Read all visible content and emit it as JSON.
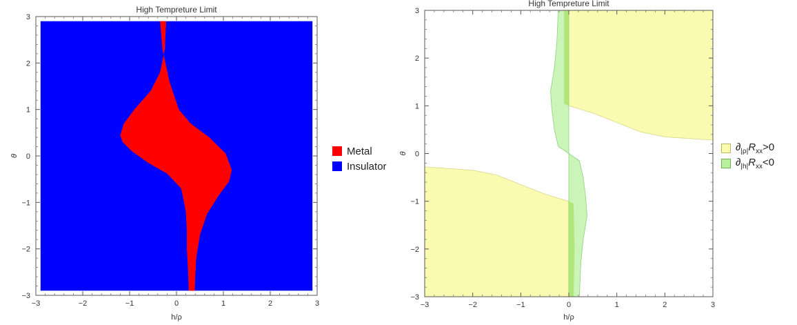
{
  "chart_data": [
    {
      "type": "region",
      "title": "High Tempreture Limit",
      "xlabel": "h/ρ",
      "ylabel": "θ",
      "xlim": [
        -3,
        3
      ],
      "ylim": [
        -3,
        3
      ],
      "xticks": [
        "−3",
        "−2",
        "−1",
        "0",
        "1",
        "2",
        "3"
      ],
      "yticks": [
        "3",
        "2",
        "1",
        "0",
        "−1",
        "−2",
        "−3"
      ],
      "background_color": "#0000ff",
      "legend_position": "right",
      "legend": [
        {
          "label": "Metal",
          "color": "#ff0000"
        },
        {
          "label": "Insulator",
          "color": "#0000ff"
        }
      ],
      "regions": [
        {
          "name": "Metal",
          "color": "#ff0000",
          "left_boundary": [
            [
              -0.22,
              2.9
            ],
            [
              -0.25,
              2.3
            ],
            [
              -0.35,
              1.8
            ],
            [
              -0.55,
              1.4
            ],
            [
              -0.9,
              1.0
            ],
            [
              -1.12,
              0.7
            ],
            [
              -1.2,
              0.45
            ],
            [
              -1.15,
              0.3
            ],
            [
              -0.95,
              0.1
            ],
            [
              -0.6,
              -0.15
            ],
            [
              -0.2,
              -0.38
            ],
            [
              0.1,
              -0.7
            ],
            [
              0.2,
              -1.2
            ],
            [
              0.22,
              -1.6
            ],
            [
              0.22,
              -2.0
            ],
            [
              0.25,
              -2.5
            ],
            [
              0.26,
              -2.9
            ]
          ],
          "right_boundary": [
            [
              -0.35,
              2.9
            ],
            [
              -0.3,
              2.3
            ],
            [
              -0.15,
              1.6
            ],
            [
              0.05,
              1.0
            ],
            [
              0.3,
              0.7
            ],
            [
              0.7,
              0.4
            ],
            [
              1.05,
              0.05
            ],
            [
              1.18,
              -0.3
            ],
            [
              1.12,
              -0.55
            ],
            [
              0.9,
              -0.85
            ],
            [
              0.65,
              -1.25
            ],
            [
              0.5,
              -1.7
            ],
            [
              0.42,
              -2.2
            ],
            [
              0.4,
              -2.6
            ],
            [
              0.39,
              -2.9
            ]
          ]
        }
      ]
    },
    {
      "type": "region",
      "title": "High Tempreture Limit",
      "xlabel": "h/ρ",
      "ylabel": "θ",
      "xlim": [
        -3,
        3
      ],
      "ylim": [
        -3,
        3
      ],
      "xticks": [
        "−3",
        "−2",
        "−1",
        "0",
        "1",
        "2",
        "3"
      ],
      "yticks": [
        "3",
        "2",
        "1",
        "0",
        "−1",
        "−2",
        "−3"
      ],
      "background_color": "#ffffff",
      "legend_position": "right",
      "legend": [
        {
          "symbol": "∂",
          "sub": "|ρ|",
          "var": "R",
          "varsub": "xx",
          "rel": ">0",
          "color": "#fafab0"
        },
        {
          "symbol": "∂",
          "sub": "|h|",
          "var": "R",
          "varsub": "xx",
          "rel": "<0",
          "color": "#b8f0a0"
        }
      ],
      "regions": [
        {
          "name": "yellow-upper",
          "color": "#fafab0",
          "points": [
            [
              0,
              3
            ],
            [
              3,
              3
            ],
            [
              3,
              0.28
            ],
            [
              2,
              0.35
            ],
            [
              1.5,
              0.45
            ],
            [
              1,
              0.65
            ],
            [
              0.5,
              0.85
            ],
            [
              0,
              1.0
            ]
          ]
        },
        {
          "name": "yellow-lower",
          "color": "#fafab0",
          "points": [
            [
              -3,
              -0.28
            ],
            [
              -2,
              -0.35
            ],
            [
              -1.5,
              -0.45
            ],
            [
              -1,
              -0.65
            ],
            [
              -0.5,
              -0.85
            ],
            [
              0,
              -1.0
            ],
            [
              0,
              -3
            ],
            [
              -3,
              -3
            ]
          ]
        },
        {
          "name": "green-upper",
          "color": "#b8f0a0",
          "points": [
            [
              -0.22,
              3
            ],
            [
              0,
              3
            ],
            [
              0,
              0
            ],
            [
              -0.22,
              0.15
            ],
            [
              -0.3,
              0.5
            ],
            [
              -0.35,
              0.9
            ],
            [
              -0.38,
              1.3
            ],
            [
              -0.3,
              1.8
            ],
            [
              -0.25,
              2.3
            ]
          ]
        },
        {
          "name": "green-lower",
          "color": "#b8f0a0",
          "points": [
            [
              0,
              0
            ],
            [
              0.22,
              -0.15
            ],
            [
              0.3,
              -0.5
            ],
            [
              0.35,
              -0.9
            ],
            [
              0.38,
              -1.3
            ],
            [
              0.3,
              -1.8
            ],
            [
              0.25,
              -2.3
            ],
            [
              0.22,
              -3
            ],
            [
              0,
              -3
            ]
          ]
        }
      ]
    }
  ]
}
